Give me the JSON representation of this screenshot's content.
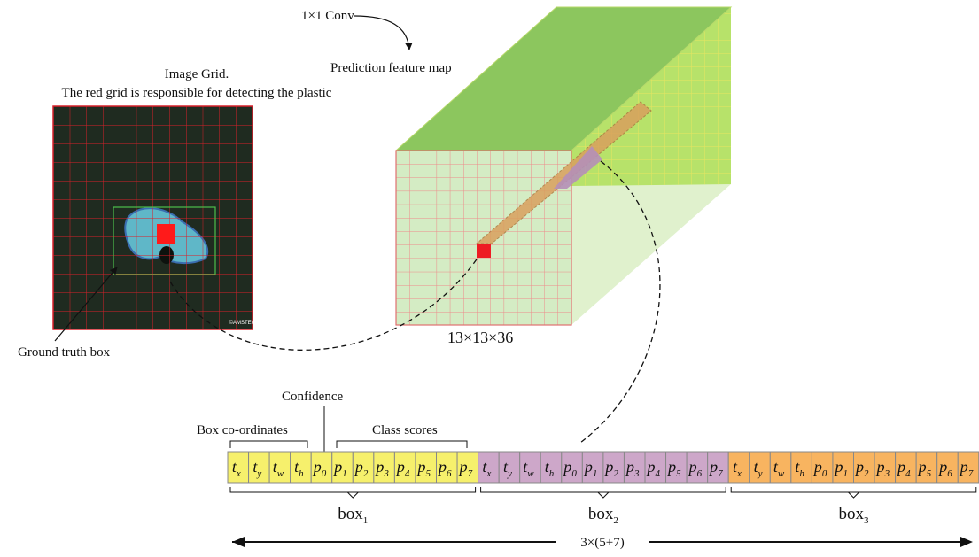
{
  "annotations": {
    "conv": "1×1 Conv",
    "feature_map": "Prediction feature map",
    "image_grid_title": [
      "Image Grid.",
      "The red grid is responsible for detecting the plastic"
    ],
    "ground_truth": "Ground truth box",
    "watermark": "©AMSTEC",
    "dims": "13×13×36",
    "confidence": "Confidence",
    "box_coordinates": "Box co-ordinates",
    "class_scores": "Class scores",
    "total": "3×(5+7)"
  },
  "vector": {
    "boxes": [
      {
        "label": {
          "base": "box",
          "sub": "1"
        },
        "color": "#f6f06c",
        "cells": [
          {
            "base": "t",
            "sub": "x"
          },
          {
            "base": "t",
            "sub": "y"
          },
          {
            "base": "t",
            "sub": "w"
          },
          {
            "base": "t",
            "sub": "h"
          },
          {
            "base": "p",
            "sub": "0"
          },
          {
            "base": "p",
            "sub": "1"
          },
          {
            "base": "p",
            "sub": "2"
          },
          {
            "base": "p",
            "sub": "3"
          },
          {
            "base": "p",
            "sub": "4"
          },
          {
            "base": "p",
            "sub": "5"
          },
          {
            "base": "p",
            "sub": "6"
          },
          {
            "base": "p",
            "sub": "7"
          }
        ]
      },
      {
        "label": {
          "base": "box",
          "sub": "2"
        },
        "color": "#cda7c9",
        "cells": [
          {
            "base": "t",
            "sub": "x"
          },
          {
            "base": "t",
            "sub": "y"
          },
          {
            "base": "t",
            "sub": "w"
          },
          {
            "base": "t",
            "sub": "h"
          },
          {
            "base": "p",
            "sub": "0"
          },
          {
            "base": "p",
            "sub": "1"
          },
          {
            "base": "p",
            "sub": "2"
          },
          {
            "base": "p",
            "sub": "3"
          },
          {
            "base": "p",
            "sub": "4"
          },
          {
            "base": "p",
            "sub": "5"
          },
          {
            "base": "p",
            "sub": "6"
          },
          {
            "base": "p",
            "sub": "7"
          }
        ]
      },
      {
        "label": {
          "base": "box",
          "sub": "3"
        },
        "color": "#f8b460",
        "cells": [
          {
            "base": "t",
            "sub": "x"
          },
          {
            "base": "t",
            "sub": "y"
          },
          {
            "base": "t",
            "sub": "w"
          },
          {
            "base": "t",
            "sub": "h"
          },
          {
            "base": "p",
            "sub": "0"
          },
          {
            "base": "p",
            "sub": "1"
          },
          {
            "base": "p",
            "sub": "2"
          },
          {
            "base": "p",
            "sub": "3"
          },
          {
            "base": "p",
            "sub": "4"
          },
          {
            "base": "p",
            "sub": "5"
          },
          {
            "base": "p",
            "sub": "6"
          },
          {
            "base": "p",
            "sub": "7"
          }
        ]
      }
    ]
  }
}
